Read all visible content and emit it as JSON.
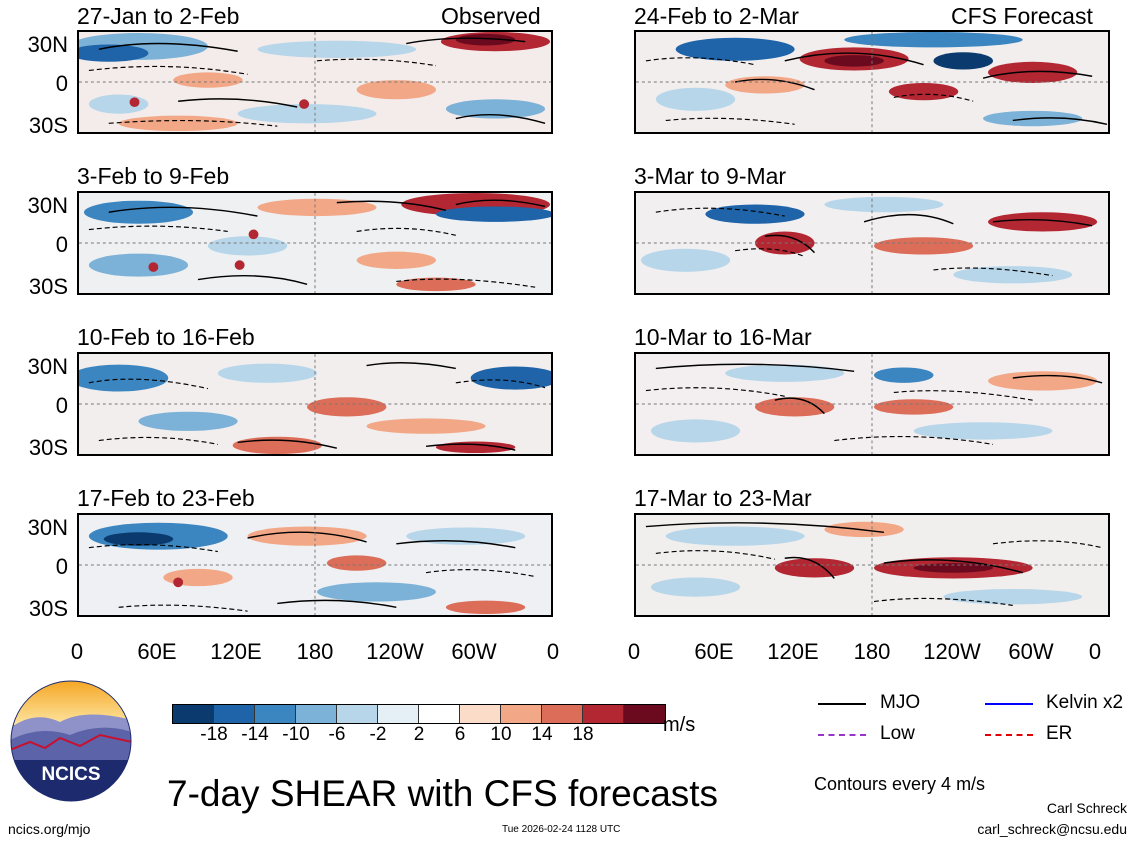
{
  "left_column": {
    "panels": [
      {
        "title": "27-Jan to 2-Feb",
        "label": "Observed"
      },
      {
        "title": "3-Feb to 9-Feb",
        "label": ""
      },
      {
        "title": "10-Feb to 16-Feb",
        "label": ""
      },
      {
        "title": "17-Feb to 23-Feb",
        "label": ""
      }
    ]
  },
  "right_column": {
    "panels": [
      {
        "title": "24-Feb to 2-Mar",
        "label": "CFS Forecast"
      },
      {
        "title": "3-Mar to 9-Mar",
        "label": ""
      },
      {
        "title": "10-Mar to 16-Mar",
        "label": ""
      },
      {
        "title": "17-Mar to 23-Mar",
        "label": ""
      }
    ]
  },
  "lat_labels": [
    "30N",
    "0",
    "30S"
  ],
  "lon_labels": [
    "0",
    "60E",
    "120E",
    "180",
    "120W",
    "60W",
    "0"
  ],
  "colorbar": {
    "ticks": [
      "-18",
      "-14",
      "-10",
      "-6",
      "-2",
      "2",
      "6",
      "10",
      "14",
      "18"
    ],
    "colors": [
      "#0b3a6e",
      "#1f63a8",
      "#3b85c0",
      "#7cb2d7",
      "#b7d6ea",
      "#e4eff6",
      "#ffffff",
      "#fbdcc9",
      "#f2a787",
      "#dc6d59",
      "#b22732",
      "#6b0a1e"
    ],
    "units": "m/s"
  },
  "legend": {
    "items": [
      {
        "label": "MJO",
        "color": "#000000",
        "style": "solid"
      },
      {
        "label": "Kelvin x2",
        "color": "#0000ff",
        "style": "solid"
      },
      {
        "label": "Low",
        "color": "#9933cc",
        "style": "dashed"
      },
      {
        "label": "ER",
        "color": "#e00000",
        "style": "dashed"
      }
    ],
    "contour_note": "Contours every 4 m/s"
  },
  "logo": {
    "text": "NCICS"
  },
  "main_title": "7-day SHEAR with CFS forecasts",
  "footer": {
    "url": "ncics.org/mjo",
    "timestamp": "Tue 2026-02-24 1128 UTC",
    "author": "Carl Schreck",
    "email": "carl_schreck@ncsu.edu"
  }
}
